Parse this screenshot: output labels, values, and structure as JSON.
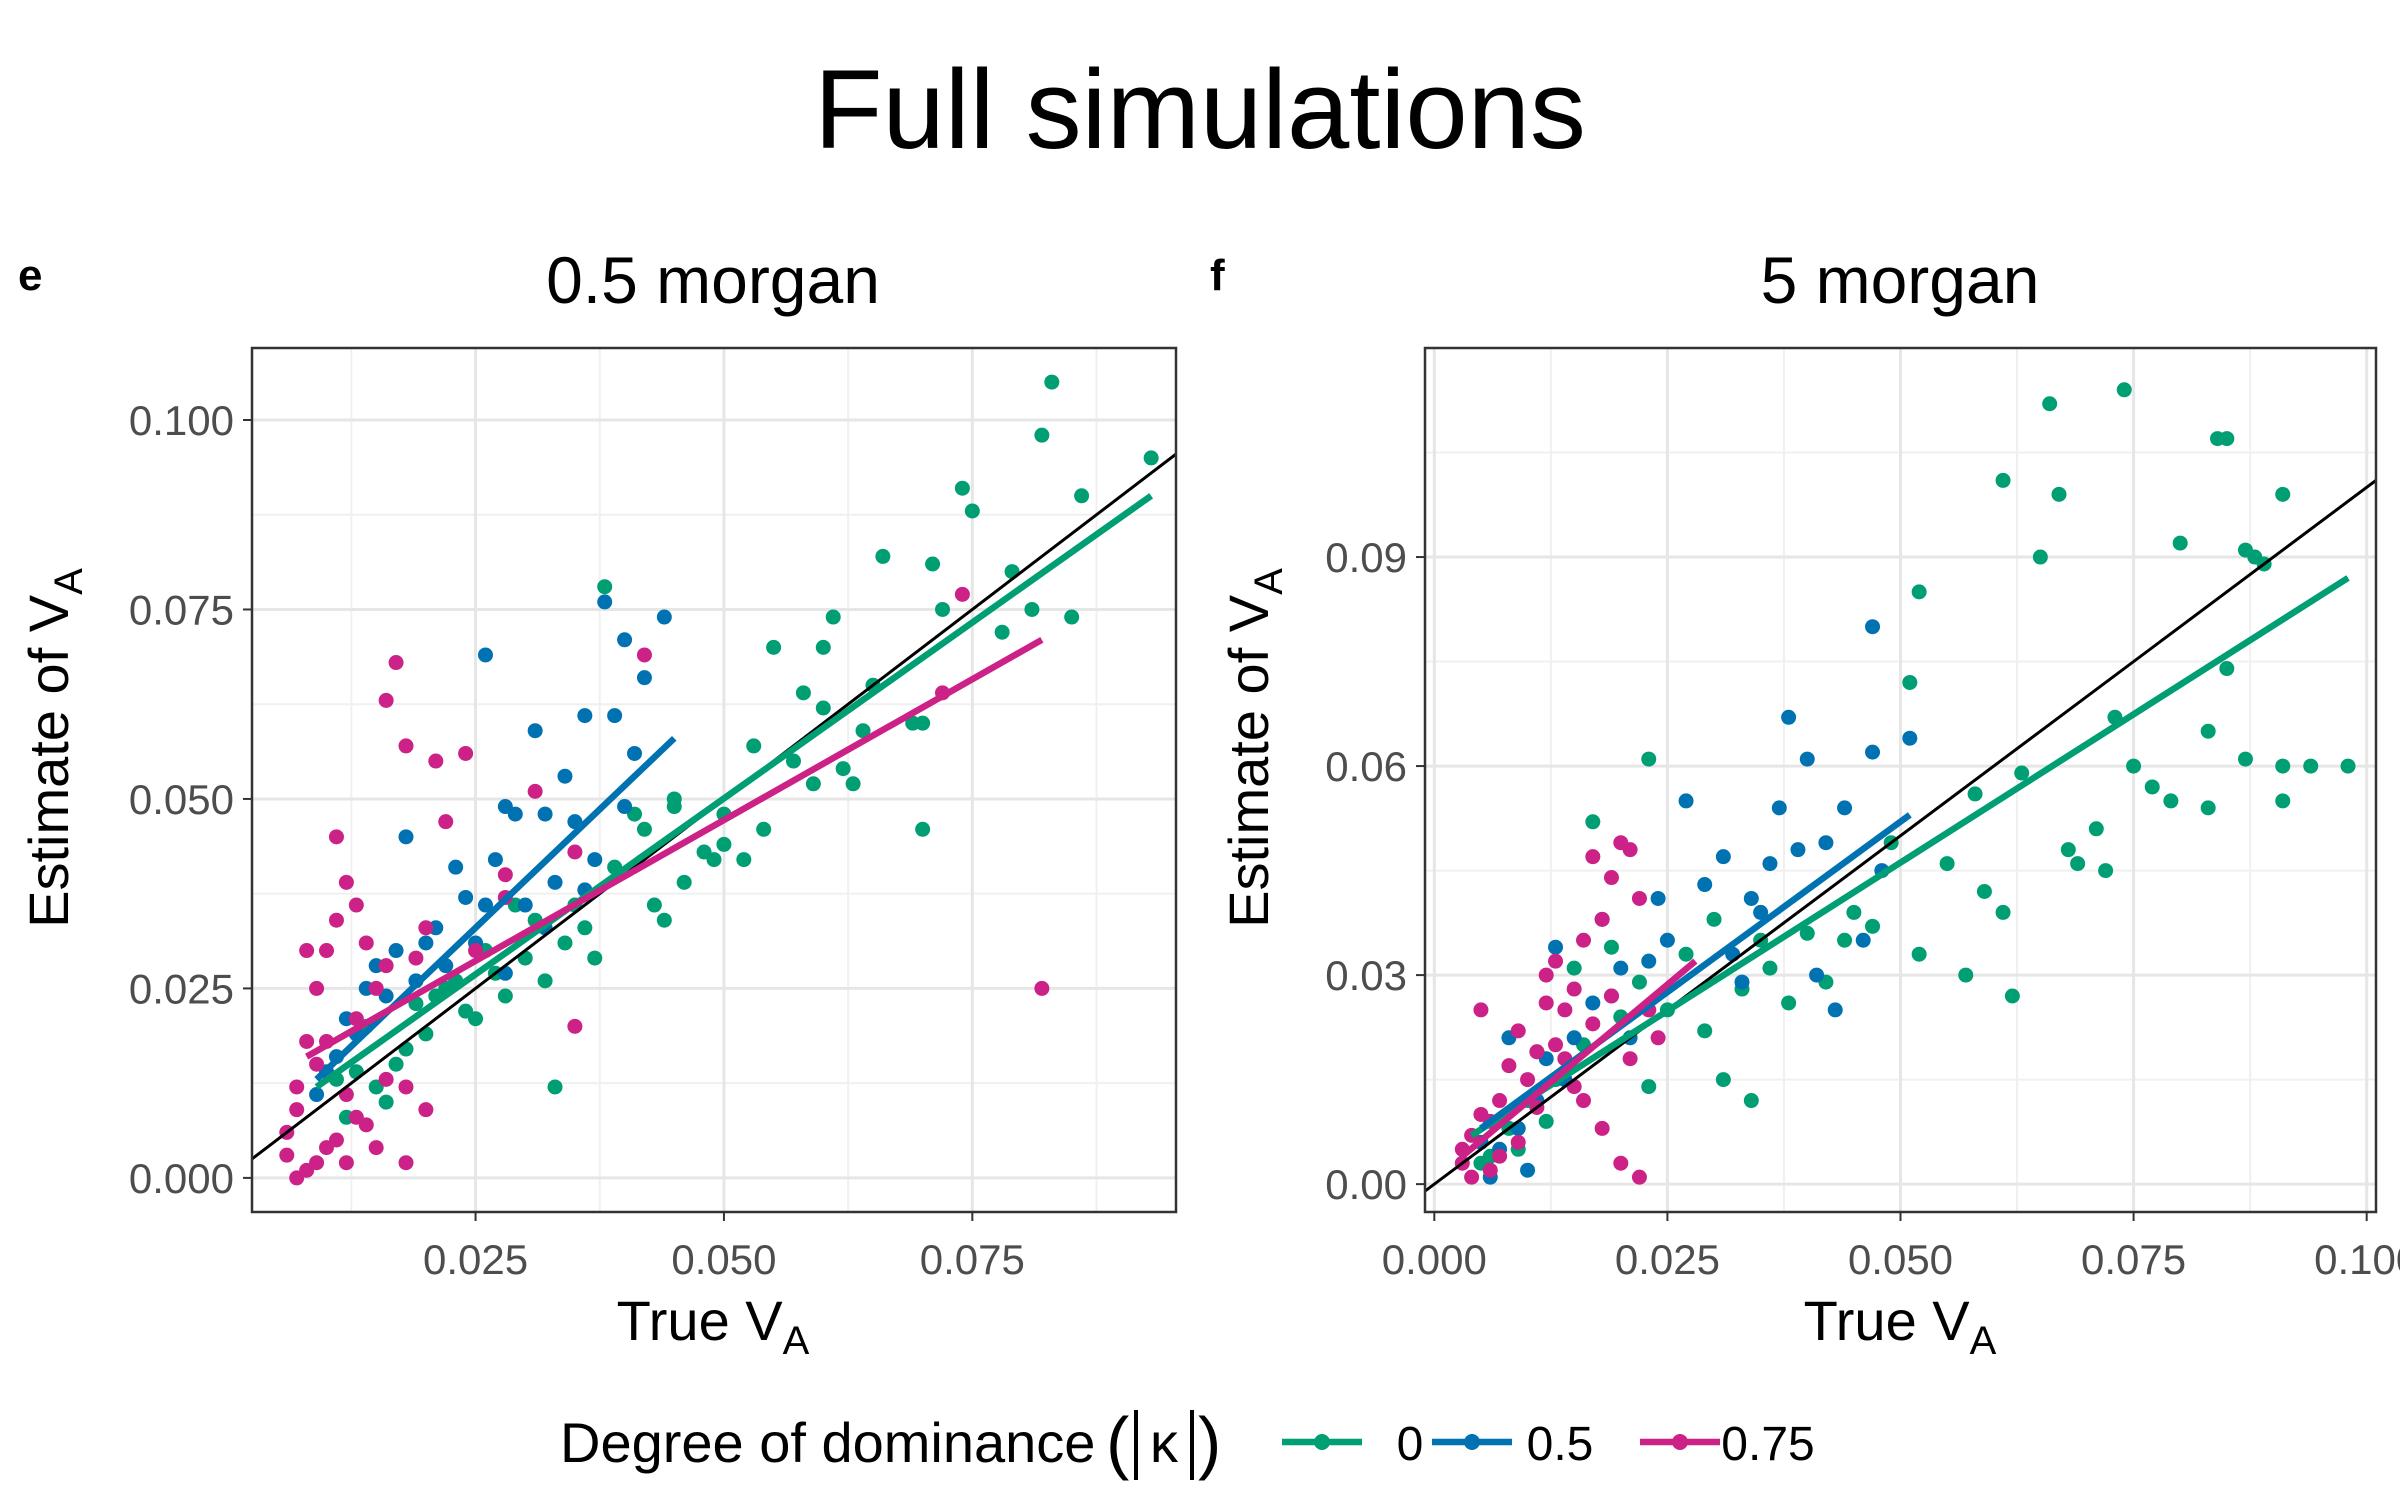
{
  "title": "Full simulations",
  "panels": [
    {
      "letter": "e",
      "subtitle": "0.5 morgan"
    },
    {
      "letter": "f",
      "subtitle": "5 morgan"
    }
  ],
  "axis": {
    "xlabel_main": "True V",
    "xlabel_sub": "A",
    "ylabel_main": "Estimate of V",
    "ylabel_sub": "A"
  },
  "legend": {
    "title_text": "Degree of dominance",
    "kappa_symbol": "κ",
    "entries": [
      {
        "label": "0",
        "color": "#009E73"
      },
      {
        "label": "0.5",
        "color": "#0072B2"
      },
      {
        "label": "0.75",
        "color": "#CC2288"
      }
    ]
  },
  "chart_data": [
    {
      "type": "scatter",
      "title": "0.5 morgan",
      "xlabel": "True V_A",
      "ylabel": "Estimate of V_A",
      "xlim": [
        0.0025,
        0.0955
      ],
      "ylim": [
        -0.0045,
        0.1095
      ],
      "xticks": [
        0.025,
        0.05,
        0.075
      ],
      "xtick_labels": [
        "0.025",
        "0.050",
        "0.075"
      ],
      "yticks": [
        0,
        0.025,
        0.05,
        0.075,
        0.1
      ],
      "ytick_labels": [
        "0.000",
        "0.025",
        "0.050",
        "0.075",
        "0.100"
      ],
      "grid": true,
      "identity_line": {
        "x": [
          0.0025,
          0.0955
        ],
        "y": [
          0.0025,
          0.0955
        ]
      },
      "series": [
        {
          "name": "0",
          "color": "#009E73",
          "fit": {
            "x": [
              0.009,
              0.093
            ],
            "y": [
              0.012,
              0.09
            ]
          },
          "x": [
            0.093,
            0.083,
            0.086,
            0.082,
            0.085,
            0.081,
            0.074,
            0.075,
            0.078,
            0.079,
            0.072,
            0.071,
            0.069,
            0.07,
            0.066,
            0.065,
            0.062,
            0.064,
            0.063,
            0.061,
            0.06,
            0.058,
            0.059,
            0.057,
            0.055,
            0.054,
            0.053,
            0.052,
            0.05,
            0.049,
            0.048,
            0.046,
            0.044,
            0.043,
            0.045,
            0.042,
            0.041,
            0.039,
            0.038,
            0.037,
            0.036,
            0.035,
            0.034,
            0.033,
            0.032,
            0.031,
            0.03,
            0.029,
            0.028,
            0.027,
            0.026,
            0.025,
            0.024,
            0.023,
            0.022,
            0.021,
            0.02,
            0.019,
            0.018,
            0.017,
            0.016,
            0.015,
            0.014,
            0.013,
            0.012,
            0.011,
            0.06,
            0.05,
            0.07,
            0.045
          ],
          "y": [
            0.095,
            0.105,
            0.09,
            0.098,
            0.074,
            0.075,
            0.091,
            0.088,
            0.072,
            0.08,
            0.075,
            0.081,
            0.06,
            0.046,
            0.082,
            0.065,
            0.054,
            0.059,
            0.052,
            0.074,
            0.062,
            0.064,
            0.052,
            0.055,
            0.07,
            0.046,
            0.057,
            0.042,
            0.048,
            0.042,
            0.043,
            0.039,
            0.034,
            0.036,
            0.05,
            0.046,
            0.048,
            0.041,
            0.078,
            0.029,
            0.033,
            0.036,
            0.031,
            0.012,
            0.026,
            0.034,
            0.029,
            0.036,
            0.024,
            0.027,
            0.03,
            0.021,
            0.022,
            0.026,
            0.025,
            0.024,
            0.019,
            0.023,
            0.017,
            0.015,
            0.01,
            0.012,
            0.02,
            0.014,
            0.008,
            0.013,
            0.07,
            0.044,
            0.06,
            0.049
          ]
        },
        {
          "name": "0.5",
          "color": "#0072B2",
          "fit": {
            "x": [
              0.009,
              0.045
            ],
            "y": [
              0.013,
              0.058
            ]
          },
          "x": [
            0.038,
            0.04,
            0.044,
            0.042,
            0.039,
            0.041,
            0.035,
            0.036,
            0.037,
            0.031,
            0.032,
            0.034,
            0.033,
            0.029,
            0.03,
            0.028,
            0.027,
            0.026,
            0.025,
            0.024,
            0.023,
            0.022,
            0.021,
            0.02,
            0.019,
            0.018,
            0.017,
            0.016,
            0.015,
            0.014,
            0.013,
            0.012,
            0.011,
            0.01,
            0.009,
            0.026,
            0.028,
            0.032,
            0.036,
            0.04
          ],
          "y": [
            0.076,
            0.071,
            0.074,
            0.066,
            0.061,
            0.056,
            0.047,
            0.061,
            0.042,
            0.059,
            0.048,
            0.053,
            0.039,
            0.048,
            0.036,
            0.049,
            0.042,
            0.069,
            0.031,
            0.037,
            0.041,
            0.028,
            0.033,
            0.031,
            0.026,
            0.045,
            0.03,
            0.024,
            0.028,
            0.025,
            0.019,
            0.021,
            0.016,
            0.014,
            0.011,
            0.036,
            0.027,
            0.033,
            0.038,
            0.049
          ]
        },
        {
          "name": "0.75",
          "color": "#CC2288",
          "fit": {
            "x": [
              0.008,
              0.082
            ],
            "y": [
              0.016,
              0.071
            ]
          },
          "x": [
            0.082,
            0.074,
            0.072,
            0.042,
            0.035,
            0.031,
            0.028,
            0.025,
            0.024,
            0.022,
            0.021,
            0.02,
            0.019,
            0.018,
            0.017,
            0.016,
            0.016,
            0.015,
            0.014,
            0.013,
            0.013,
            0.012,
            0.011,
            0.011,
            0.01,
            0.01,
            0.009,
            0.009,
            0.008,
            0.008,
            0.007,
            0.007,
            0.006,
            0.006,
            0.012,
            0.014,
            0.018,
            0.02,
            0.015,
            0.009,
            0.011,
            0.013,
            0.007,
            0.01,
            0.012,
            0.008,
            0.016,
            0.018,
            0.035,
            0.028
          ],
          "y": [
            0.025,
            0.077,
            0.064,
            0.069,
            0.043,
            0.051,
            0.04,
            0.03,
            0.056,
            0.047,
            0.055,
            0.033,
            0.029,
            0.057,
            0.068,
            0.063,
            0.028,
            0.025,
            0.031,
            0.036,
            0.021,
            0.039,
            0.045,
            0.034,
            0.018,
            0.03,
            0.025,
            0.015,
            0.018,
            0.03,
            0.009,
            0.012,
            0.006,
            0.003,
            0.011,
            0.007,
            0.012,
            0.009,
            0.004,
            0.002,
            0.005,
            0.008,
            0.0,
            0.004,
            0.002,
            0.001,
            0.013,
            0.002,
            0.02,
            0.037
          ]
        }
      ]
    },
    {
      "type": "scatter",
      "title": "5 morgan",
      "xlabel": "True V_A",
      "ylabel": "Estimate of V_A",
      "xlim": [
        -0.001,
        0.101
      ],
      "ylim": [
        -0.004,
        0.12
      ],
      "xticks": [
        0,
        0.025,
        0.05,
        0.075,
        0.1
      ],
      "xtick_labels": [
        "0.000",
        "0.025",
        "0.050",
        "0.075",
        "0.100"
      ],
      "yticks": [
        0,
        0.03,
        0.06,
        0.09
      ],
      "ytick_labels": [
        "0.00",
        "0.03",
        "0.06",
        "0.09"
      ],
      "grid": true,
      "identity_line": {
        "x": [
          -0.001,
          0.101
        ],
        "y": [
          -0.001,
          0.101
        ]
      },
      "series": [
        {
          "name": "0",
          "color": "#009E73",
          "fit": {
            "x": [
              0.004,
              0.098
            ],
            "y": [
              0.007,
              0.087
            ]
          },
          "x": [
            0.074,
            0.066,
            0.084,
            0.085,
            0.091,
            0.088,
            0.08,
            0.083,
            0.087,
            0.089,
            0.061,
            0.067,
            0.065,
            0.073,
            0.079,
            0.085,
            0.094,
            0.091,
            0.098,
            0.091,
            0.087,
            0.083,
            0.077,
            0.075,
            0.072,
            0.071,
            0.069,
            0.063,
            0.061,
            0.059,
            0.057,
            0.055,
            0.052,
            0.051,
            0.049,
            0.047,
            0.045,
            0.044,
            0.042,
            0.04,
            0.038,
            0.036,
            0.035,
            0.033,
            0.031,
            0.03,
            0.029,
            0.027,
            0.025,
            0.023,
            0.022,
            0.02,
            0.019,
            0.017,
            0.016,
            0.015,
            0.013,
            0.012,
            0.011,
            0.01,
            0.009,
            0.008,
            0.006,
            0.005,
            0.023,
            0.052,
            0.062,
            0.058,
            0.068,
            0.034
          ],
          "y": [
            0.114,
            0.112,
            0.107,
            0.107,
            0.099,
            0.09,
            0.092,
            0.065,
            0.091,
            0.089,
            0.101,
            0.099,
            0.09,
            0.067,
            0.055,
            0.074,
            0.06,
            0.055,
            0.06,
            0.06,
            0.061,
            0.054,
            0.057,
            0.06,
            0.045,
            0.051,
            0.046,
            0.059,
            0.039,
            0.042,
            0.03,
            0.046,
            0.033,
            0.072,
            0.049,
            0.037,
            0.039,
            0.035,
            0.029,
            0.036,
            0.026,
            0.031,
            0.035,
            0.028,
            0.015,
            0.038,
            0.022,
            0.033,
            0.025,
            0.061,
            0.029,
            0.024,
            0.034,
            0.052,
            0.02,
            0.031,
            0.015,
            0.009,
            0.019,
            0.012,
            0.005,
            0.008,
            0.004,
            0.003,
            0.014,
            0.085,
            0.027,
            0.056,
            0.048,
            0.012
          ]
        },
        {
          "name": "0.5",
          "color": "#0072B2",
          "fit": {
            "x": [
              0.005,
              0.051
            ],
            "y": [
              0.008,
              0.053
            ]
          },
          "x": [
            0.047,
            0.038,
            0.04,
            0.051,
            0.047,
            0.044,
            0.042,
            0.039,
            0.037,
            0.036,
            0.034,
            0.032,
            0.031,
            0.029,
            0.027,
            0.025,
            0.023,
            0.021,
            0.02,
            0.018,
            0.017,
            0.015,
            0.013,
            0.012,
            0.011,
            0.009,
            0.008,
            0.007,
            0.006,
            0.005,
            0.043,
            0.048,
            0.035,
            0.033,
            0.024,
            0.019,
            0.014,
            0.01,
            0.041,
            0.046
          ],
          "y": [
            0.08,
            0.067,
            0.061,
            0.064,
            0.062,
            0.054,
            0.049,
            0.048,
            0.054,
            0.046,
            0.041,
            0.033,
            0.047,
            0.043,
            0.055,
            0.035,
            0.032,
            0.021,
            0.031,
            0.038,
            0.026,
            0.021,
            0.034,
            0.018,
            0.012,
            0.008,
            0.021,
            0.005,
            0.001,
            0.006,
            0.025,
            0.045,
            0.039,
            0.029,
            0.041,
            0.027,
            0.015,
            0.002,
            0.03,
            0.035
          ]
        },
        {
          "name": "0.75",
          "color": "#CC2288",
          "fit": {
            "x": [
              0.003,
              0.028
            ],
            "y": [
              0.004,
              0.032
            ]
          },
          "x": [
            0.02,
            0.017,
            0.019,
            0.021,
            0.022,
            0.018,
            0.016,
            0.015,
            0.014,
            0.013,
            0.012,
            0.011,
            0.01,
            0.009,
            0.008,
            0.007,
            0.006,
            0.005,
            0.004,
            0.003,
            0.023,
            0.024,
            0.021,
            0.019,
            0.017,
            0.015,
            0.013,
            0.011,
            0.009,
            0.007,
            0.006,
            0.005,
            0.004,
            0.003,
            0.012,
            0.014,
            0.016,
            0.018,
            0.02,
            0.022
          ],
          "y": [
            0.049,
            0.047,
            0.044,
            0.048,
            0.041,
            0.038,
            0.035,
            0.028,
            0.025,
            0.032,
            0.026,
            0.019,
            0.015,
            0.022,
            0.017,
            0.012,
            0.009,
            0.025,
            0.007,
            0.003,
            0.025,
            0.021,
            0.018,
            0.027,
            0.023,
            0.014,
            0.02,
            0.011,
            0.006,
            0.004,
            0.002,
            0.01,
            0.001,
            0.005,
            0.03,
            0.018,
            0.012,
            0.008,
            0.003,
            0.001
          ]
        }
      ]
    }
  ]
}
